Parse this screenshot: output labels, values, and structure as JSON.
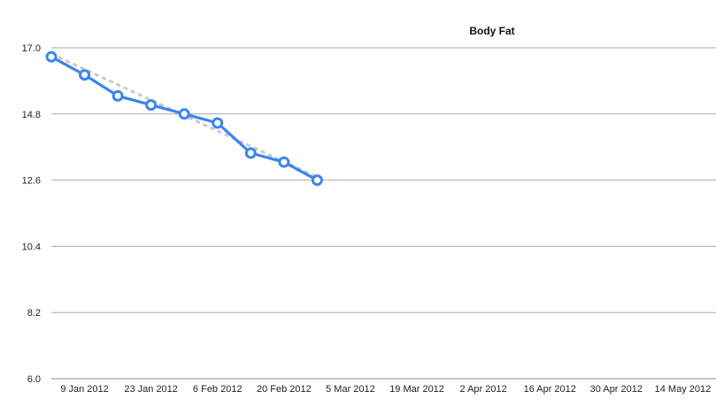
{
  "chart_data": {
    "type": "line",
    "title": "Body Fat",
    "xlabel": "",
    "ylabel": "",
    "ylim": [
      6.0,
      17.0
    ],
    "xlim": [
      "2012-01-02",
      "2012-05-21"
    ],
    "y_ticks": [
      "6.0",
      "8.2",
      "10.4",
      "12.6",
      "14.8",
      "17.0"
    ],
    "x_ticks": [
      {
        "date": "2012-01-09",
        "label": "9 Jan 2012"
      },
      {
        "date": "2012-01-23",
        "label": "23 Jan 2012"
      },
      {
        "date": "2012-02-06",
        "label": "6 Feb 2012"
      },
      {
        "date": "2012-02-20",
        "label": "20 Feb 2012"
      },
      {
        "date": "2012-03-05",
        "label": "5 Mar 2012"
      },
      {
        "date": "2012-03-19",
        "label": "19 Mar 2012"
      },
      {
        "date": "2012-04-02",
        "label": "2 Apr 2012"
      },
      {
        "date": "2012-04-16",
        "label": "16 Apr 2012"
      },
      {
        "date": "2012-04-30",
        "label": "30 Apr 2012"
      },
      {
        "date": "2012-05-14",
        "label": "14 May 2012"
      }
    ],
    "grid": true,
    "legend": "none",
    "series": [
      {
        "x": [
          "2012-01-02",
          "2012-01-09",
          "2012-01-16",
          "2012-01-23",
          "2012-01-30",
          "2012-02-06",
          "2012-02-13",
          "2012-02-20",
          "2012-02-27"
        ],
        "y": [
          16.7,
          16.1,
          15.4,
          15.1,
          14.8,
          14.5,
          13.5,
          13.2,
          12.6
        ],
        "color": "#3a86f0"
      }
    ],
    "trendline": {
      "x": [
        "2012-01-02",
        "2012-02-27"
      ],
      "y": [
        16.8,
        12.7
      ],
      "color": "#c9c9c9",
      "style": "dashed"
    }
  }
}
